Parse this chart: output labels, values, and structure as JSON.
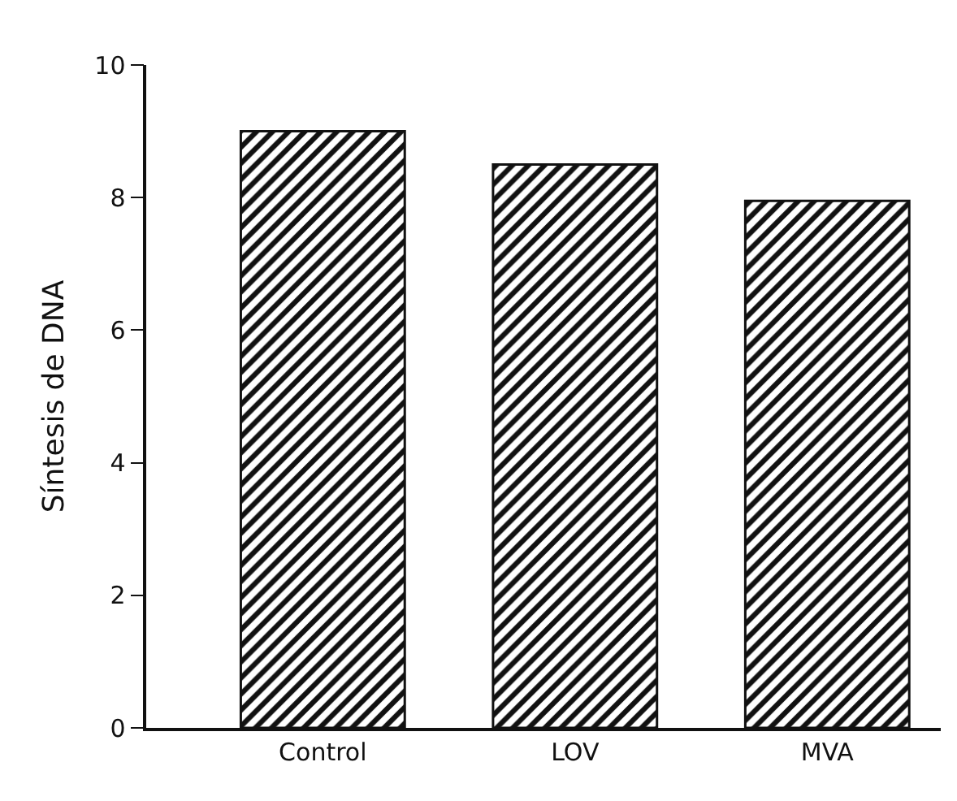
{
  "chart_data": {
    "type": "bar",
    "ylabel": "Síntesis de DNA",
    "categories": [
      "Control",
      "LOV",
      "MVA"
    ],
    "values": [
      9.0,
      8.5,
      7.95
    ],
    "color": "#111111",
    "ylim": [
      0,
      10
    ],
    "yticks": [
      0,
      2,
      4,
      6,
      8,
      10
    ],
    "grid": false,
    "legend": false
  }
}
